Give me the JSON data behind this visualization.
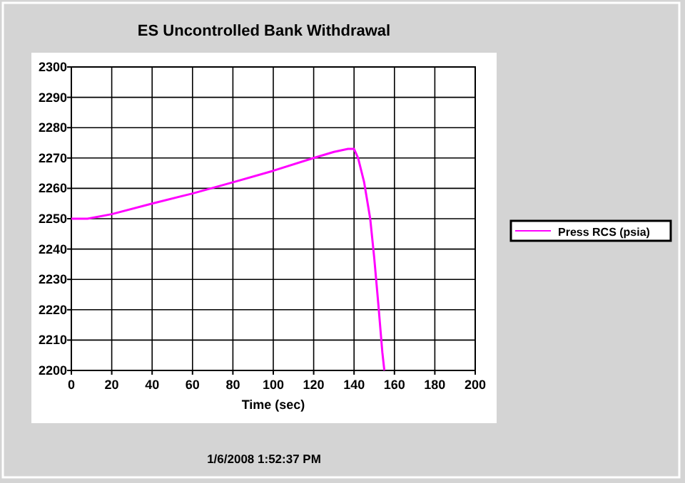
{
  "chart_data": {
    "type": "line",
    "title": "ES Uncontrolled Bank Withdrawal",
    "xlabel": "Time (sec)",
    "annotations": [
      "1/6/2008 1:52:37 PM"
    ],
    "x": [
      0,
      8,
      20,
      40,
      60,
      80,
      100,
      120,
      130,
      137,
      140,
      142,
      145,
      148,
      150,
      152,
      154,
      155
    ],
    "series": [
      {
        "name": "Press RCS (psia)",
        "color": "#ff00ff",
        "values": [
          2250,
          2250,
          2251.5,
          2255,
          2258.3,
          2262,
          2265.8,
          2270,
          2272,
          2273,
          2273,
          2270,
          2262,
          2250,
          2237,
          2222,
          2206,
          2200
        ]
      }
    ],
    "xlim": [
      0,
      200
    ],
    "xticks": [
      0,
      20,
      40,
      60,
      80,
      100,
      120,
      140,
      160,
      180,
      200
    ],
    "ylim": [
      2200,
      2300
    ],
    "yticks": [
      2200,
      2210,
      2220,
      2230,
      2240,
      2250,
      2260,
      2270,
      2280,
      2290,
      2300
    ],
    "grid": true,
    "legend": "right"
  }
}
